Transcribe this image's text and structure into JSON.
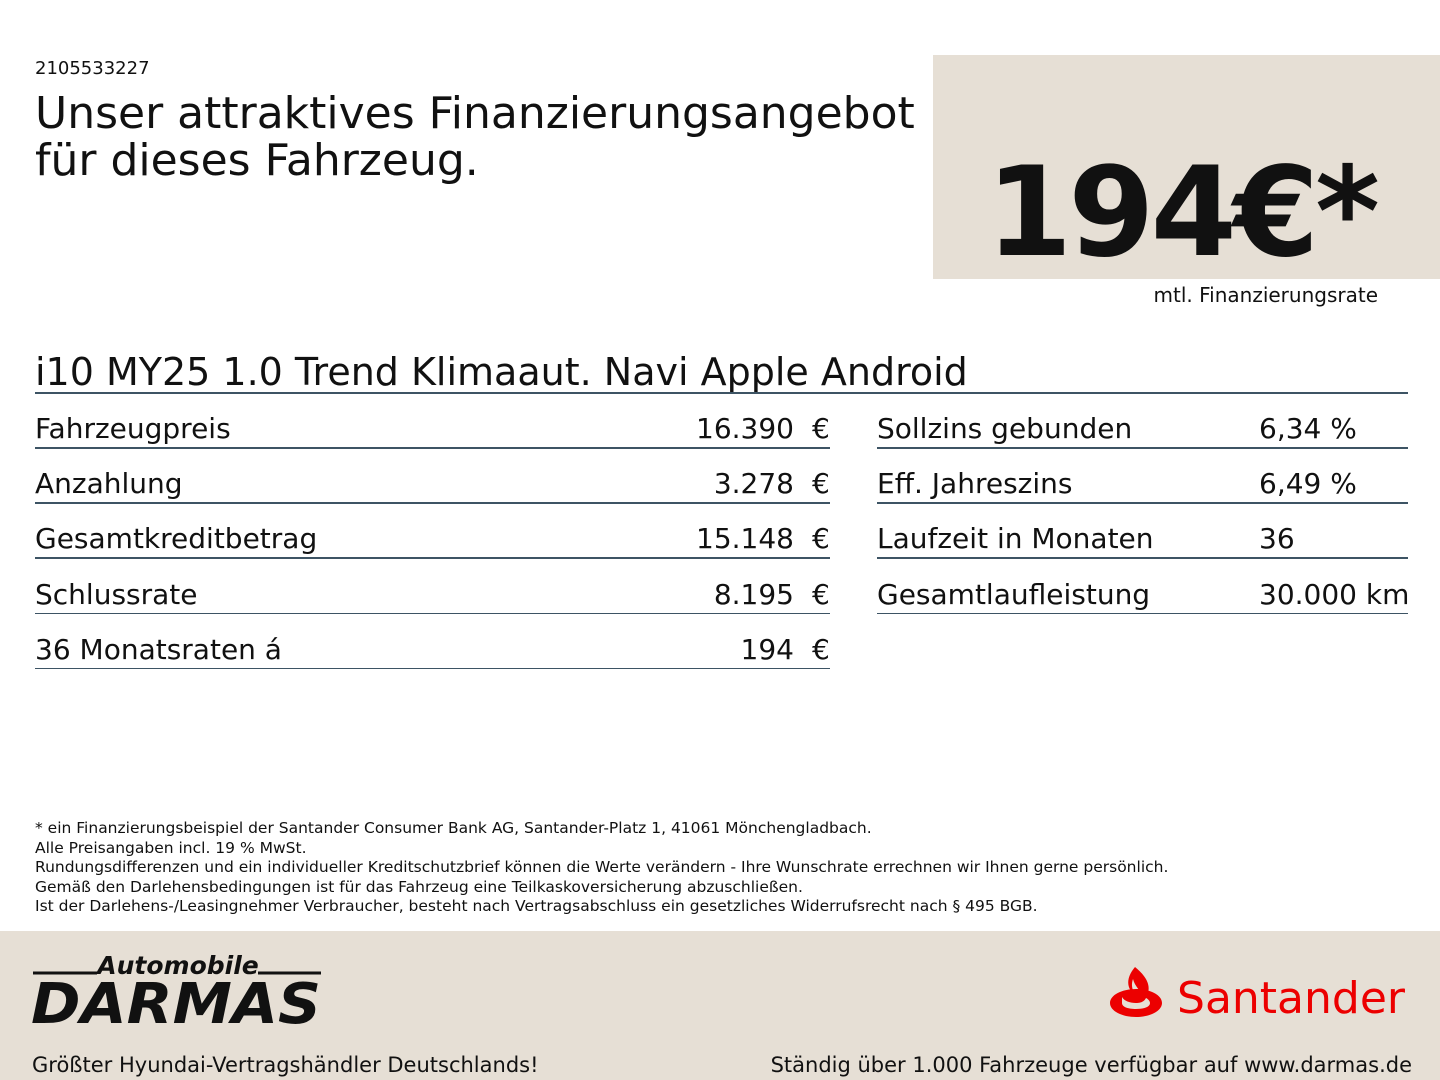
{
  "header": {
    "id": "2105533227",
    "title_lines": [
      "Unser attraktives Finanzierungsangebot",
      "für dieses Fahrzeug."
    ]
  },
  "price_box": {
    "price": "194€*",
    "label": "mtl. Finanzierungsrate"
  },
  "vehicle": "i10 MY25 1.0 Trend Klimaaut. Navi Apple Android",
  "left_table": {
    "rows": [
      [
        "Fahrzeugpreis",
        "16.390",
        "€"
      ],
      [
        "Anzahlung",
        "3.278",
        "€"
      ],
      [
        "Gesamtkreditbetrag",
        "15.148",
        "€"
      ],
      [
        "Schlussrate",
        "8.195",
        "€"
      ],
      [
        "36 Monatsraten á",
        "194",
        "€"
      ]
    ]
  },
  "right_table": {
    "rows": [
      [
        "Sollzins gebunden",
        "6,34 %"
      ],
      [
        "Eff. Jahreszins",
        "6,49 %"
      ],
      [
        "Laufzeit in Monaten",
        "36"
      ],
      [
        "Gesamtlaufleistung",
        "30.000 km"
      ]
    ]
  },
  "footnotes": [
    "* ein Finanzierungsbeispiel der Santander Consumer Bank AG, Santander-Platz 1, 41061 Mönchengladbach.",
    "Alle Preisangaben incl. 19 % MwSt.",
    "Rundungsdifferenzen und ein individueller Kreditschutzbrief können die Werte verändern - Ihre Wunschrate errechnen wir Ihnen gerne persönlich.",
    "Gemäß den Darlehensbedingungen ist für das Fahrzeug eine Teilkaskoversicherung abzuschließen.",
    "Ist der Darlehens-/Leasingnehmer Verbraucher, besteht nach Vertragsabschluss ein gesetzliches Widerrufsrecht nach § 495 BGB."
  ],
  "footer": {
    "dealer_small": "Automobile",
    "dealer_name": "DARMAS",
    "dealer_tagline": "Größter Hyundai-Vertragshändler Deutschlands!",
    "bank": "Santander",
    "right_tagline": "Ständig über 1.000 Fahrzeuge verfügbar auf www.darmas.de"
  }
}
